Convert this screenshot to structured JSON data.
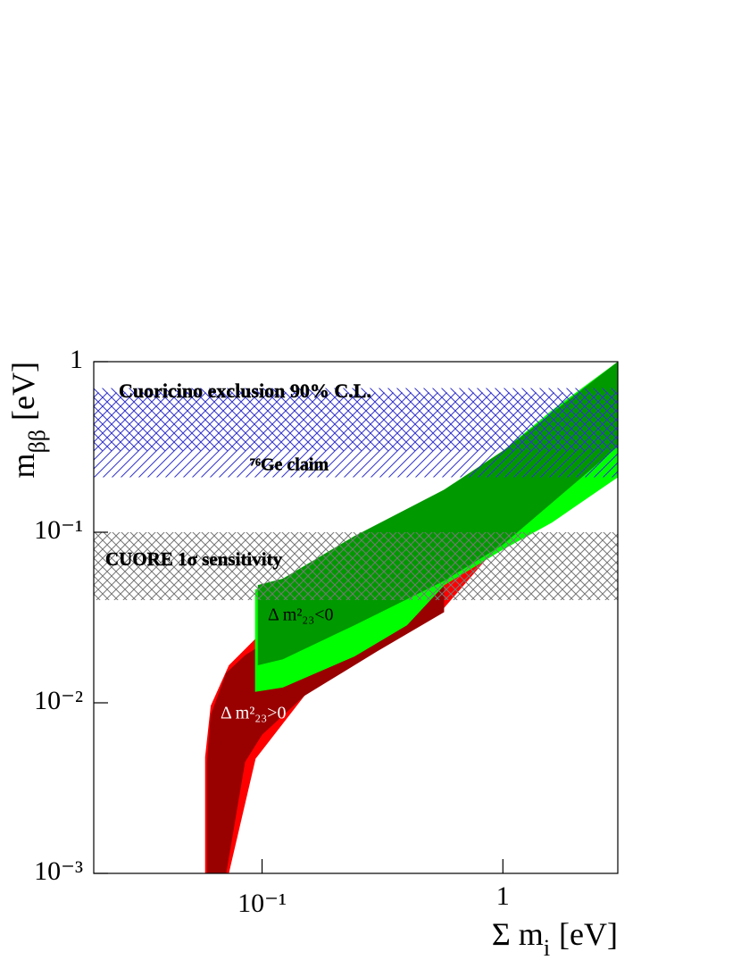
{
  "chart_data": {
    "type": "band",
    "x_label": [
      "Σ m",
      "i",
      "[eV]"
    ],
    "y_label": [
      "m",
      "ββ",
      "[eV]"
    ],
    "log_x": true,
    "log_y": true,
    "xlim": [
      0.02,
      3
    ],
    "ylim": [
      0.001,
      1
    ],
    "xticks": [
      {
        "value": 0.1,
        "label": "10⁻¹"
      },
      1
    ],
    "yticks": [
      {
        "value": 0.001,
        "label": "10⁻³"
      },
      {
        "value": 0.01,
        "label": "10⁻²"
      },
      {
        "value": 0.1,
        "label": "10⁻¹"
      },
      1
    ],
    "bands": [
      {
        "color": "#ff0000",
        "label": "Δ m²₂₃>0",
        "x": [
          0.058,
          0.0612,
          0.0728,
          0.094,
          0.15,
          0.24,
          0.57,
          1,
          3
        ],
        "upper": [
          0.0048,
          0.0096,
          0.0166,
          0.0238,
          0.036,
          0.052,
          0.11,
          0.19,
          0.55
        ],
        "lower": [
          0.001,
          0.001,
          0.001,
          0.0047,
          0.011,
          0.0187,
          0.036,
          0.09,
          0.23
        ]
      },
      {
        "color": "#990000",
        "x": [
          0.059,
          0.0612,
          0.071,
          0.085,
          0.1,
          0.15,
          0.3,
          0.57
        ],
        "upper": [
          0.0045,
          0.0085,
          0.015,
          0.019,
          0.022,
          0.032,
          0.05,
          0.08
        ],
        "lower": [
          0.001,
          0.001,
          0.001,
          0.0045,
          0.0065,
          0.011,
          0.02,
          0.034
        ]
      },
      {
        "color": "#00ff00",
        "x": [
          0.0935,
          0.122,
          0.242,
          0.4,
          0.572,
          1,
          1.6,
          3
        ],
        "upper": [
          0.046,
          0.0534,
          0.095,
          0.13,
          0.178,
          0.3,
          0.52,
          1
        ],
        "lower": [
          0.0116,
          0.0123,
          0.0187,
          0.0285,
          0.049,
          0.079,
          0.114,
          0.21
        ]
      },
      {
        "color": "#009900",
        "label": "Δ m²₂₃<0",
        "x": [
          0.096,
          0.122,
          0.242,
          0.572,
          1,
          3
        ],
        "upper": [
          0.049,
          0.0534,
          0.095,
          0.178,
          0.3,
          1
        ],
        "lower": [
          0.0166,
          0.018,
          0.0285,
          0.052,
          0.0845,
          0.318
        ]
      }
    ],
    "hbands": [
      {
        "label": "⁷⁶Ge claim",
        "lower": 0.21,
        "upper": 0.66,
        "color": "#3333cc",
        "hatch": "/"
      },
      {
        "label": "Cuoricino exclusion 90% C.L.",
        "lower": 0.3,
        "upper": 0.7,
        "color": "#3333cc",
        "hatch": "\\"
      },
      {
        "label": "CUORE 1σ sensitivity",
        "lower": 0.04,
        "upper": 0.1,
        "color": "#777777",
        "hatch": "x"
      }
    ]
  }
}
